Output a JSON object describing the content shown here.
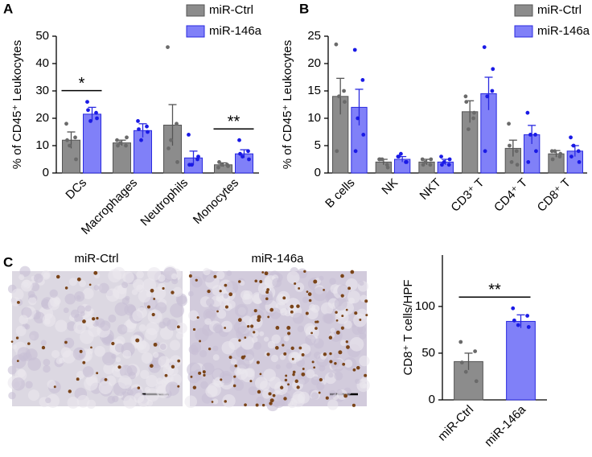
{
  "chart_data": [
    {
      "type": "bar",
      "panel": "A",
      "ylabel": "% of CD45⁺ Leukocytes",
      "categories": [
        "DCs",
        "Macrophages",
        "Neutrophils",
        "Monocytes"
      ],
      "ylim": [
        0,
        50
      ],
      "yticks": [
        0,
        10,
        20,
        30,
        40,
        50
      ],
      "legend": "upper right",
      "series": [
        {
          "name": "miR-Ctrl",
          "color": "#8c8c8c",
          "edge": "#555555",
          "point_color": "#6a6a6a",
          "values": [
            12,
            11,
            17.5,
            3
          ],
          "errors": [
            3,
            1,
            7.5,
            0.7
          ],
          "points": [
            [
              18,
              13,
              10,
              5,
              12
            ],
            [
              12,
              10,
              11,
              13,
              10
            ],
            [
              46,
              18,
              12,
              4,
              9
            ],
            [
              2,
              3,
              3,
              2.5,
              4
            ]
          ]
        },
        {
          "name": "miR-146a",
          "color": "#8080f8",
          "edge": "#2a2ae0",
          "point_color": "#1a1ae6",
          "values": [
            21.5,
            15.5,
            5.5,
            7
          ],
          "errors": [
            2.5,
            2.5,
            2.5,
            1.5
          ],
          "points": [
            [
              26,
              22,
              19,
              20,
              23
            ],
            [
              19,
              17,
              12,
              15,
              16
            ],
            [
              14,
              5,
              3,
              6,
              3
            ],
            [
              12,
              8,
              6,
              5,
              7
            ]
          ]
        }
      ],
      "annotations": [
        {
          "text": "*",
          "category": "DCs"
        },
        {
          "text": "**",
          "category": "Monocytes"
        }
      ]
    },
    {
      "type": "bar",
      "panel": "B",
      "ylabel": "% of CD45⁺ Leukocytes",
      "categories": [
        "B cells",
        "NK",
        "NKT",
        "CD3⁺ T",
        "CD4⁺ T",
        "CD8⁺ T"
      ],
      "ylim": [
        0,
        25
      ],
      "yticks": [
        0,
        5,
        10,
        15,
        20,
        25
      ],
      "legend": "upper right",
      "series": [
        {
          "name": "miR-Ctrl",
          "color": "#8c8c8c",
          "edge": "#555555",
          "point_color": "#6a6a6a",
          "values": [
            14,
            2,
            2,
            11.2,
            4.5,
            3.5
          ],
          "errors": [
            3.3,
            0.5,
            0.5,
            2,
            1.5,
            0.6
          ],
          "points": [
            [
              23.5,
              15,
              14,
              13,
              4
            ],
            [
              2.5,
              1.5,
              2.5,
              1,
              2.5
            ],
            [
              2.5,
              1.5,
              2,
              2.5,
              1.5
            ],
            [
              14,
              10,
              8,
              11,
              13
            ],
            [
              9,
              4,
              2,
              1.5,
              5
            ],
            [
              4,
              3,
              4,
              3.5,
              2.5
            ]
          ]
        },
        {
          "name": "miR-146a",
          "color": "#8080f8",
          "edge": "#2a2ae0",
          "point_color": "#1a1ae6",
          "values": [
            12,
            2.5,
            2,
            14.5,
            7,
            4
          ],
          "errors": [
            3.3,
            0.5,
            0.5,
            3,
            1.7,
            1
          ],
          "points": [
            [
              22.5,
              17,
              10,
              7,
              4
            ],
            [
              3,
              2,
              3.5,
              2,
              3
            ],
            [
              3,
              1.5,
              2,
              2.5,
              1.5
            ],
            [
              23,
              15,
              14,
              19,
              4
            ],
            [
              11,
              7,
              7,
              4,
              2
            ],
            [
              6.5,
              4,
              5,
              2,
              3
            ]
          ]
        }
      ]
    },
    {
      "type": "bar",
      "ylabel": "CD8⁺ T cells/HPF",
      "categories": [
        "miR-Ctrl",
        "miR-146a"
      ],
      "ylim": [
        0,
        155
      ],
      "yticks": [
        0,
        50,
        100
      ],
      "values": [
        41,
        84
      ],
      "errors": [
        9,
        7
      ],
      "colors": [
        "#8c8c8c",
        "#8080f8"
      ],
      "edges": [
        "#555555",
        "#2a2ae0"
      ],
      "point_colors": [
        "#6a6a6a",
        "#1a1ae6"
      ],
      "points": [
        [
          62,
          52,
          30,
          20,
          40
        ],
        [
          98,
          90,
          80,
          78,
          85
        ]
      ],
      "annotations": [
        {
          "text": "**"
        }
      ]
    }
  ],
  "images": {
    "panel": "C",
    "labels": [
      "miR-Ctrl",
      "miR-146a"
    ]
  }
}
